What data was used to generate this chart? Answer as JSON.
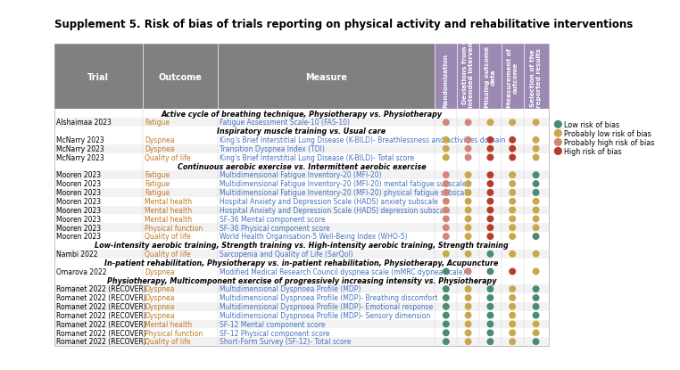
{
  "title": "Supplement 5. Risk of bias of trials reporting on physical activity and rehabilitative interventions",
  "col_headers_short": [
    "Randomization",
    "Deviations from the\nintended intervention",
    "Missing outcome\ndata",
    "Measurement of\noutcome",
    "Selection of the\nreported results"
  ],
  "section_headers": [
    "Active cycle of breathing technique, Physiotherapy vs. Physiotherapy",
    "Inspiratory muscle training vs. Usual care",
    "Continuous aerobic exercise vs. Intermittent aerobic exercise",
    "Low-intensity aerobic training, Strength training vs. High-intensity aerobic training, Strength training",
    "In-patient rehabilitation, Physiotherapy vs. in-patient rehabilitation, Physiotherapy, Acupuncture",
    "Physiotherapy, Multicomponent exercise of progressively increasing intensity vs. Physiotherapy"
  ],
  "rows": [
    {
      "trial": "Alshaimaa 2023",
      "outcome": "Fatigue",
      "measure": "Fatigue Assessment Scale-10 (FAS-10)",
      "dots": [
        "pink",
        "pink",
        "yellow",
        "yellow",
        "yellow"
      ],
      "section": 0
    },
    {
      "trial": "McNarry 2023",
      "outcome": "Dyspnea",
      "measure": "King's Brief Interstitial Lung Disease (K-BILD)- Breathlessness and activities domain",
      "dots": [
        "yellow",
        "pink",
        "red",
        "red",
        "yellow"
      ],
      "section": 1
    },
    {
      "trial": "McNarry 2023",
      "outcome": "Dyspnea",
      "measure": "Transition Dyspnea Index (TDI)",
      "dots": [
        "yellow",
        "pink",
        "red",
        "red",
        "yellow"
      ],
      "section": 1
    },
    {
      "trial": "McNarry 2023",
      "outcome": "Quality of life",
      "measure": "King's Brief Interstitial Lung Disease (K-BILD)- Total score",
      "dots": [
        "yellow",
        "pink",
        "red",
        "red",
        "yellow"
      ],
      "section": 1
    },
    {
      "trial": "Mooren 2023",
      "outcome": "Fatigue",
      "measure": "Multidimensional Fatigue Inventory-20 (MFI-20)",
      "dots": [
        "pink",
        "yellow",
        "red",
        "yellow",
        "green"
      ],
      "section": 2
    },
    {
      "trial": "Mooren 2023",
      "outcome": "Fatigue",
      "measure": "Multidimensional Fatigue Inventory-20 (MFI-20) mental fatigue subscale",
      "dots": [
        "pink",
        "yellow",
        "red",
        "yellow",
        "green"
      ],
      "section": 2
    },
    {
      "trial": "Mooren 2023",
      "outcome": "Fatigue",
      "measure": "Multidimensional Fatigue Inventory-20 (MFI-20) physical fatigue subscale",
      "dots": [
        "pink",
        "yellow",
        "red",
        "yellow",
        "green"
      ],
      "section": 2
    },
    {
      "trial": "Mooren 2023",
      "outcome": "Mental health",
      "measure": "Hospital Anxiety and Depression Scale (HADS) anxiety subscale",
      "dots": [
        "pink",
        "yellow",
        "red",
        "yellow",
        "yellow"
      ],
      "section": 2
    },
    {
      "trial": "Mooren 2023",
      "outcome": "Mental health",
      "measure": "Hospital Anxiety and Depression Scale (HADS) depression subscale",
      "dots": [
        "pink",
        "yellow",
        "red",
        "yellow",
        "yellow"
      ],
      "section": 2
    },
    {
      "trial": "Mooren 2023",
      "outcome": "Mental health",
      "measure": "SF-36 Mental component score",
      "dots": [
        "pink",
        "yellow",
        "red",
        "yellow",
        "yellow"
      ],
      "section": 2
    },
    {
      "trial": "Mooren 2023",
      "outcome": "Physical function",
      "measure": "SF-36 Physical component score",
      "dots": [
        "pink",
        "yellow",
        "red",
        "yellow",
        "yellow"
      ],
      "section": 2
    },
    {
      "trial": "Mooren 2023",
      "outcome": "Quality of life",
      "measure": "World Health Organisation-5 Well-Being Index (WHO-5)",
      "dots": [
        "pink",
        "yellow",
        "red",
        "yellow",
        "green"
      ],
      "section": 2
    },
    {
      "trial": "Nambi 2022",
      "outcome": "Quality of life",
      "measure": "Sarcopenia and Quality of Life (SarQol)",
      "dots": [
        "yellow",
        "yellow",
        "green",
        "yellow",
        "yellow"
      ],
      "section": 3
    },
    {
      "trial": "Omarova 2022",
      "outcome": "Dyspnea",
      "measure": "Modified Medical Research Council dyspnea scale (mMRC dypnea scale)",
      "dots": [
        "green",
        "pink",
        "green",
        "red",
        "yellow"
      ],
      "section": 4
    },
    {
      "trial": "Romanet 2022 (RECOVER)",
      "outcome": "Dyspnea",
      "measure": "Multidimensional Dyspnoea Profile (MDP)",
      "dots": [
        "green",
        "yellow",
        "green",
        "yellow",
        "green"
      ],
      "section": 5
    },
    {
      "trial": "Romanet 2022 (RECOVER)",
      "outcome": "Dyspnea",
      "measure": "Multidimensional Dyspnoea Profile (MDP)- Breathing discomfort",
      "dots": [
        "green",
        "yellow",
        "green",
        "yellow",
        "green"
      ],
      "section": 5
    },
    {
      "trial": "Romanet 2022 (RECOVER)",
      "outcome": "Dyspnea",
      "measure": "Multidimensional Dyspnoea Profile (MDP)- Emotional response",
      "dots": [
        "green",
        "yellow",
        "green",
        "yellow",
        "green"
      ],
      "section": 5
    },
    {
      "trial": "Romanet 2022 (RECOVER)",
      "outcome": "Dyspnea",
      "measure": "Multidimensional Dyspnoea Profile (MDP)- Sensory dimension",
      "dots": [
        "green",
        "yellow",
        "green",
        "yellow",
        "green"
      ],
      "section": 5
    },
    {
      "trial": "Romanet 2022 (RECOVER)",
      "outcome": "Mental health",
      "measure": "SF-12 Mental component score",
      "dots": [
        "green",
        "yellow",
        "green",
        "yellow",
        "yellow"
      ],
      "section": 5
    },
    {
      "trial": "Romanet 2022 (RECOVER)",
      "outcome": "Physical function",
      "measure": "SF-12 Physical component score",
      "dots": [
        "green",
        "yellow",
        "green",
        "yellow",
        "yellow"
      ],
      "section": 5
    },
    {
      "trial": "Romanet 2022 (RECOVER)",
      "outcome": "Quality of life",
      "measure": "Short-Form Survey (SF-12)- Total score",
      "dots": [
        "green",
        "yellow",
        "green",
        "yellow",
        "green"
      ],
      "section": 5
    }
  ],
  "dot_colors": {
    "green": "#4a8c6f",
    "yellow": "#c8a84b",
    "pink": "#d4857a",
    "red": "#b83c2b"
  },
  "legend": [
    {
      "label": "Low risk of bias",
      "color": "#4a8c6f"
    },
    {
      "label": "Probably low risk of bias",
      "color": "#c8a84b"
    },
    {
      "label": "Probably high risk of bias",
      "color": "#d4857a"
    },
    {
      "label": "High risk of bias",
      "color": "#b83c2b"
    }
  ],
  "header_bg": "#808080",
  "purple_bg": "#9b89b4",
  "outcome_color": "#c07820",
  "measure_color": "#4472c4",
  "trial_color": "#000000",
  "section_color": "#000000"
}
